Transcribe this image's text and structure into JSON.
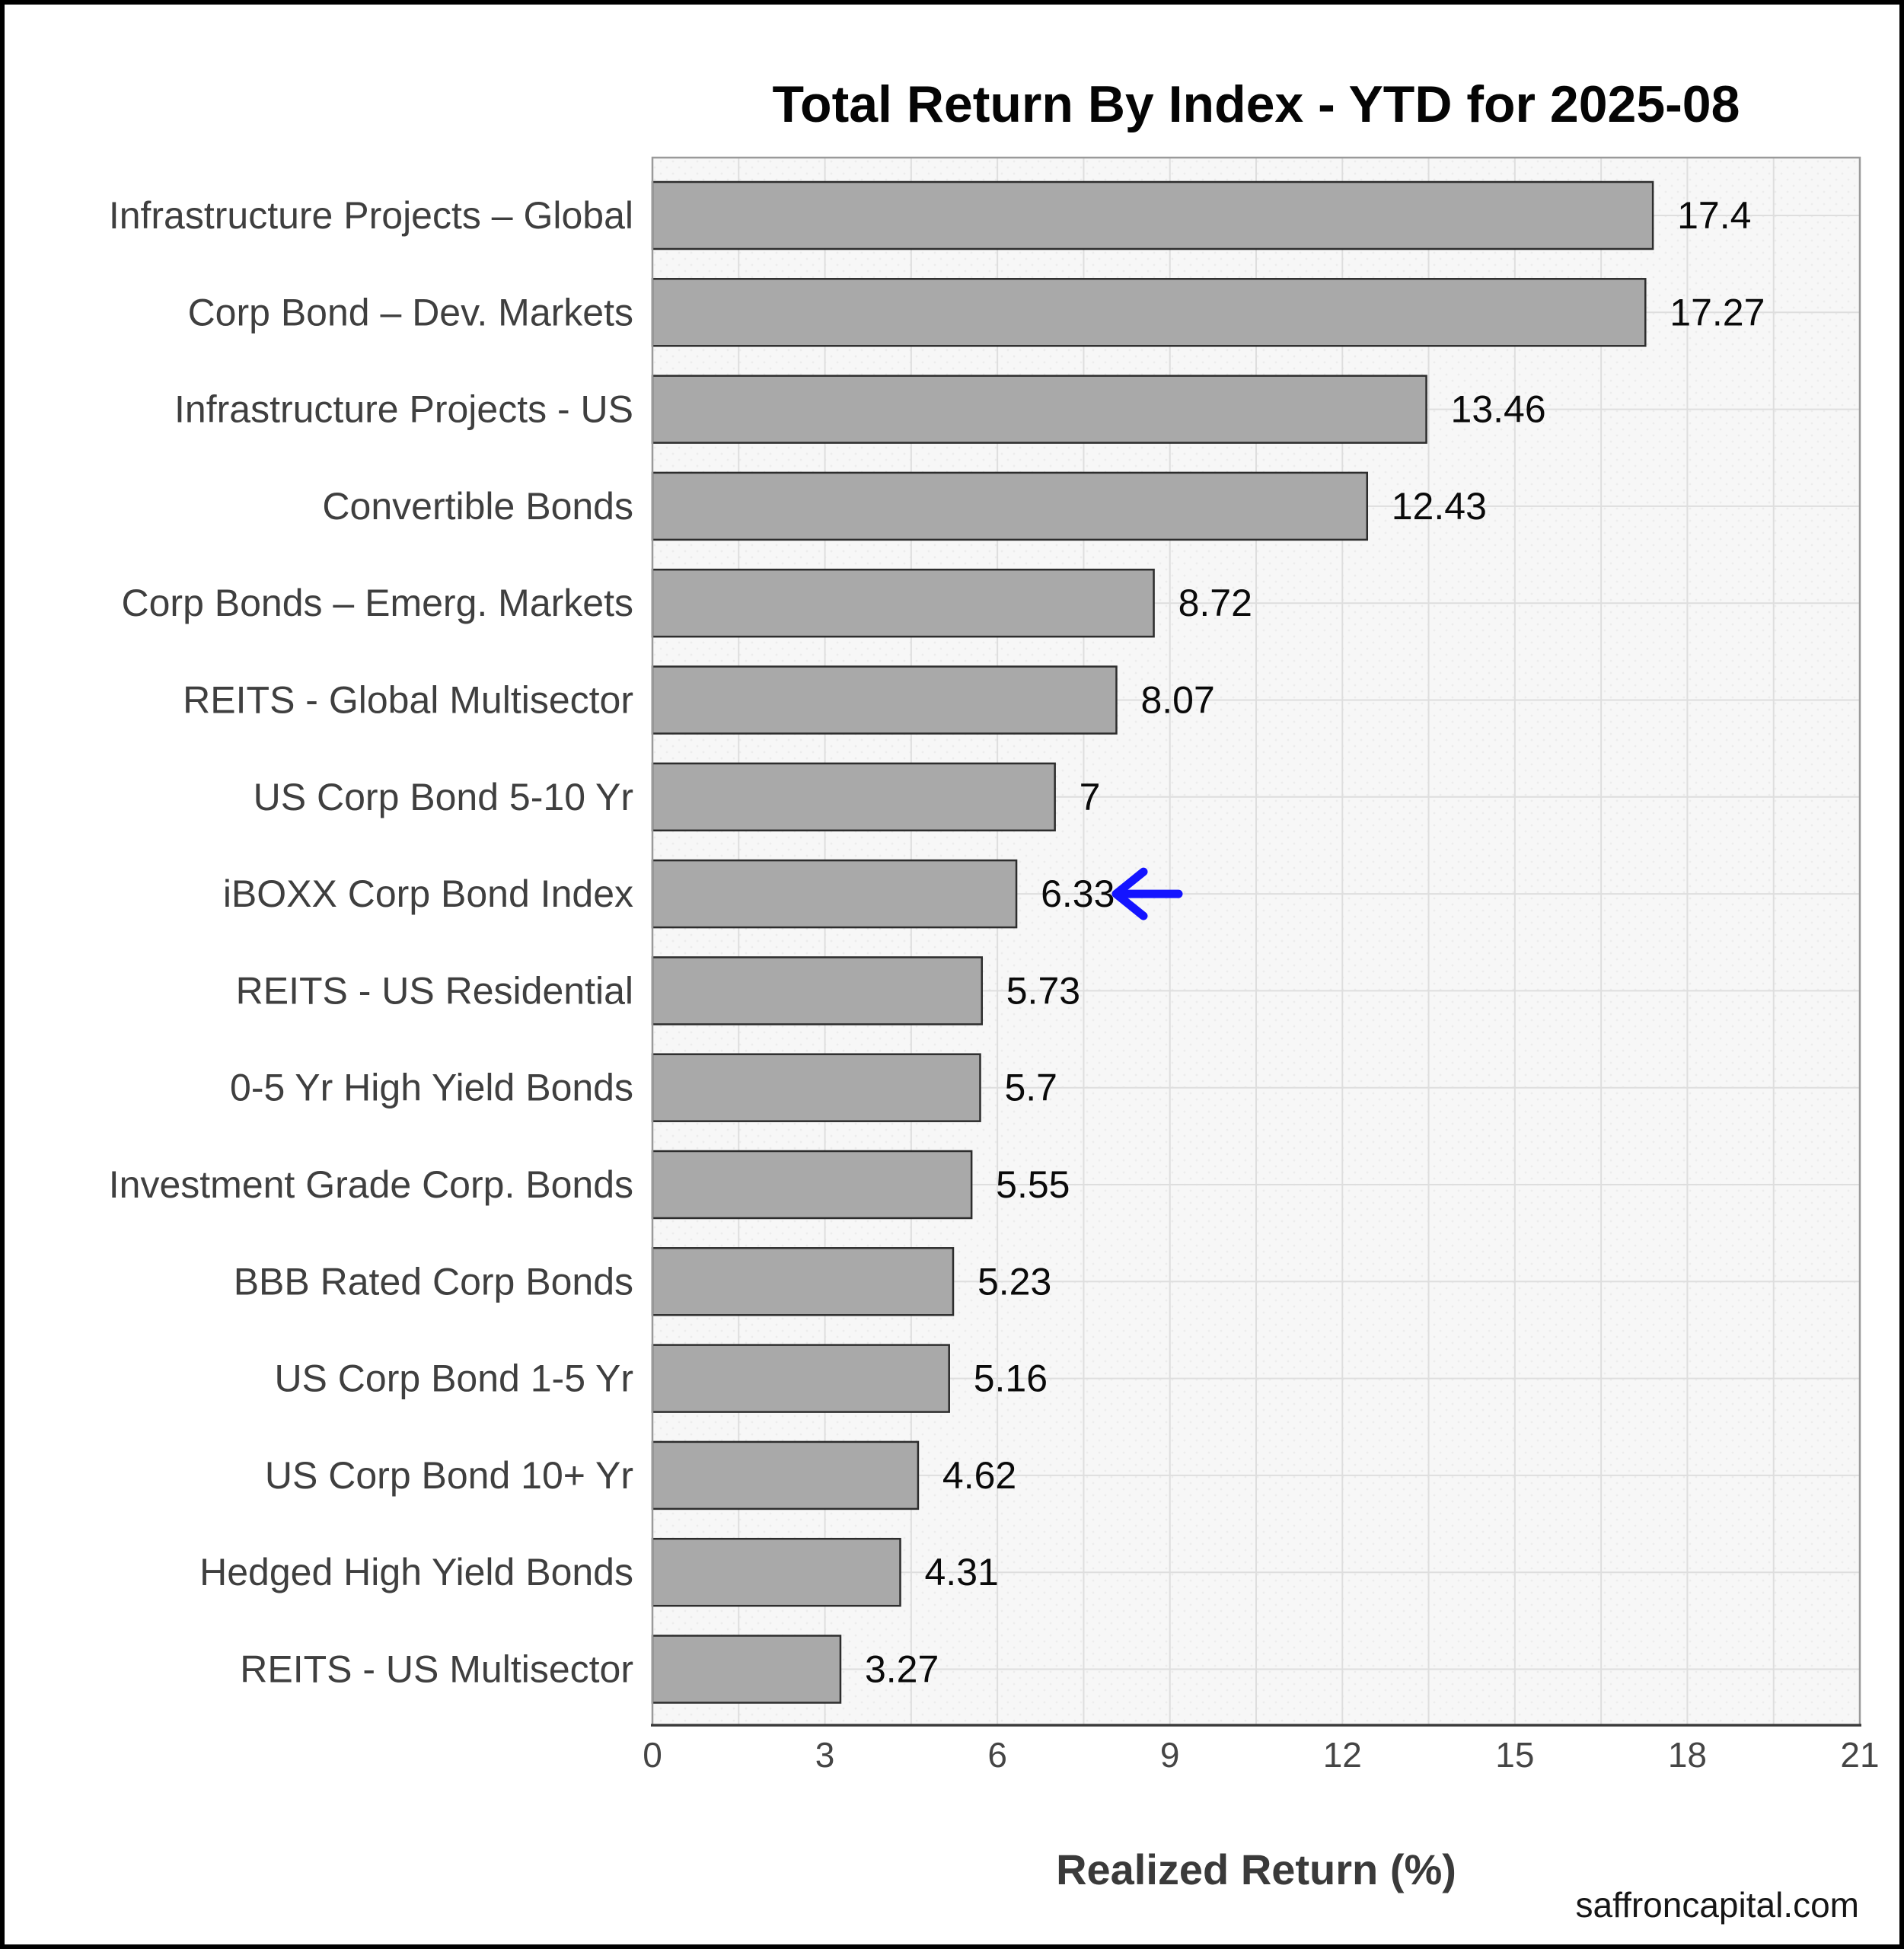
{
  "header": {
    "title": "Total Return By Index - YTD for 2025-08"
  },
  "chart_data": {
    "type": "bar",
    "orientation": "horizontal",
    "title": "Total Return By Index - YTD for 2025-08",
    "categories": [
      "Infrastructure Projects – Global",
      "Corp Bond – Dev. Markets",
      "Infrastructure Projects - US",
      "Convertible Bonds",
      "Corp Bonds – Emerg. Markets",
      "REITS - Global Multisector",
      "US Corp Bond 5-10 Yr",
      "iBOXX Corp Bond Index",
      "REITS - US Residential",
      "0-5 Yr High Yield Bonds",
      "Investment Grade Corp. Bonds",
      "BBB Rated Corp Bonds",
      "US Corp Bond 1-5 Yr",
      "US Corp Bond 10+ Yr",
      "Hedged High Yield Bonds",
      "REITS - US Multisector"
    ],
    "values": [
      17.4,
      17.27,
      13.46,
      12.43,
      8.72,
      8.07,
      7,
      6.33,
      5.73,
      5.7,
      5.55,
      5.23,
      5.16,
      4.62,
      4.31,
      3.27
    ],
    "value_labels": [
      "17.4",
      "17.27",
      "13.46",
      "12.43",
      "8.72",
      "8.07",
      "7",
      "6.33",
      "5.73",
      "5.7",
      "5.55",
      "5.23",
      "5.16",
      "4.62",
      "4.31",
      "3.27"
    ],
    "highlight": {
      "category": "iBOXX Corp Bond Index",
      "index": 7,
      "value": 6.33,
      "color": "#1414ff",
      "annotation": "left-arrow"
    },
    "xlabel": "Realized Return (%)",
    "ylabel": "",
    "xlim": [
      0,
      21
    ],
    "xticks": [
      "0",
      "3",
      "6",
      "9",
      "12",
      "15",
      "18",
      "21"
    ],
    "grid": true,
    "minor_grid_step": 1.5,
    "legend": "none",
    "bar_color": "#a9a9a9",
    "bar_edge_color": "#2d2d2d",
    "plot_bg_color": "#f7f7f7",
    "grid_color": "#dedede"
  },
  "footer": {
    "watermark": "saffroncapital.com"
  }
}
